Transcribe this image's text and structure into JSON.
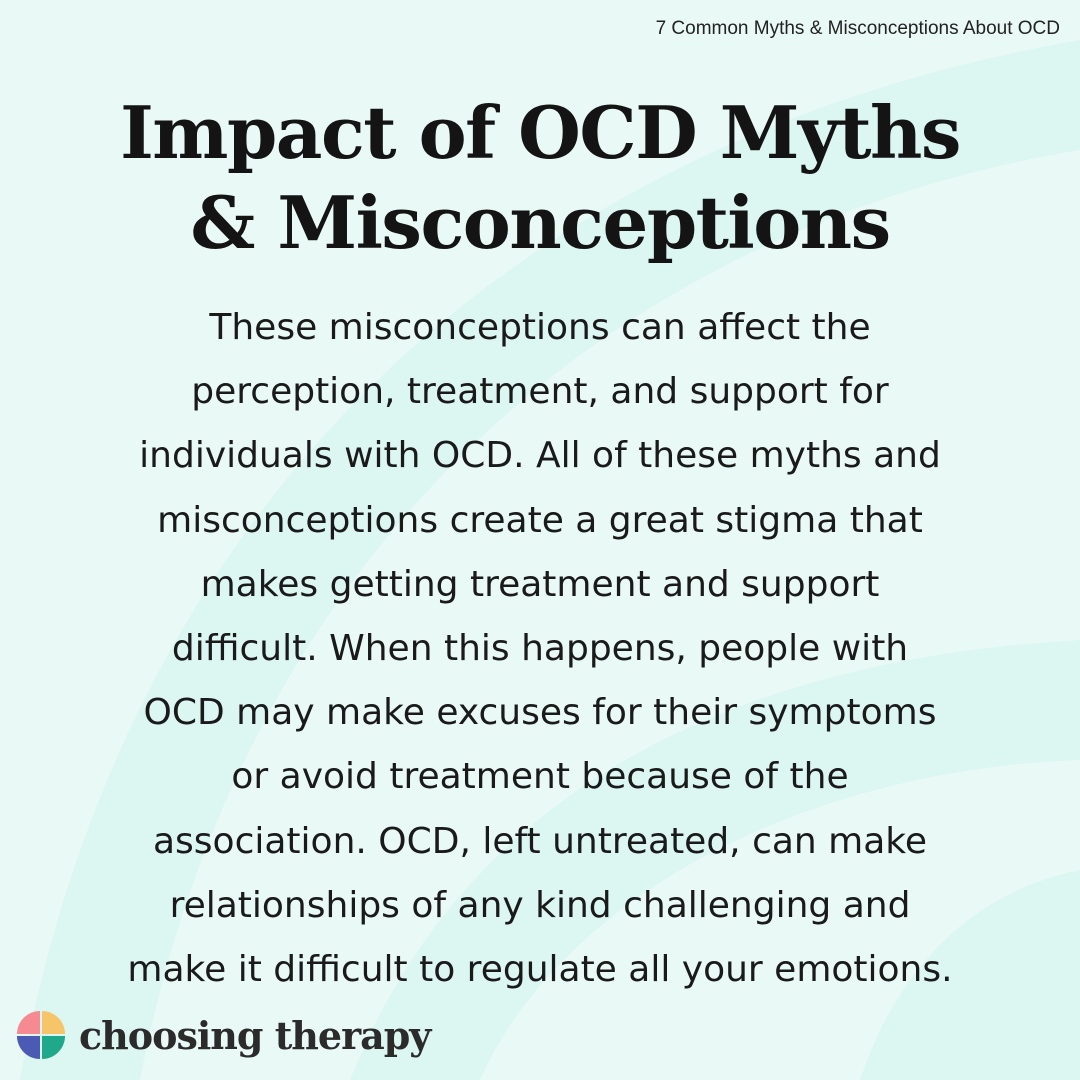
{
  "header": {
    "series_title": "7 Common Myths & Misconceptions About OCD"
  },
  "headline": {
    "lines": [
      "Impact of OCD Myths",
      "& Misconceptions"
    ]
  },
  "body": {
    "lines": [
      "These misconceptions can affect the",
      "perception, treatment, and support for",
      "individuals with OCD. All of these myths and",
      "misconceptions create a great stigma that",
      "makes getting treatment and support",
      "difficult. When this happens, people with",
      "OCD may make excuses for their symptoms",
      "or avoid treatment because of the",
      "association. OCD, left untreated, can make",
      "relationships of any kind challenging and",
      "make it difficult to regulate all your emotions."
    ]
  },
  "brand": {
    "name": "choosing therapy",
    "logo_icon": "four-petal-logo-icon",
    "logo_colors": [
      "#f58a92",
      "#f6c56a",
      "#4b5bb4",
      "#1fa88a"
    ]
  },
  "colors": {
    "background": "#e9faf6",
    "arc": "#dbf5f0",
    "text": "#141414"
  }
}
